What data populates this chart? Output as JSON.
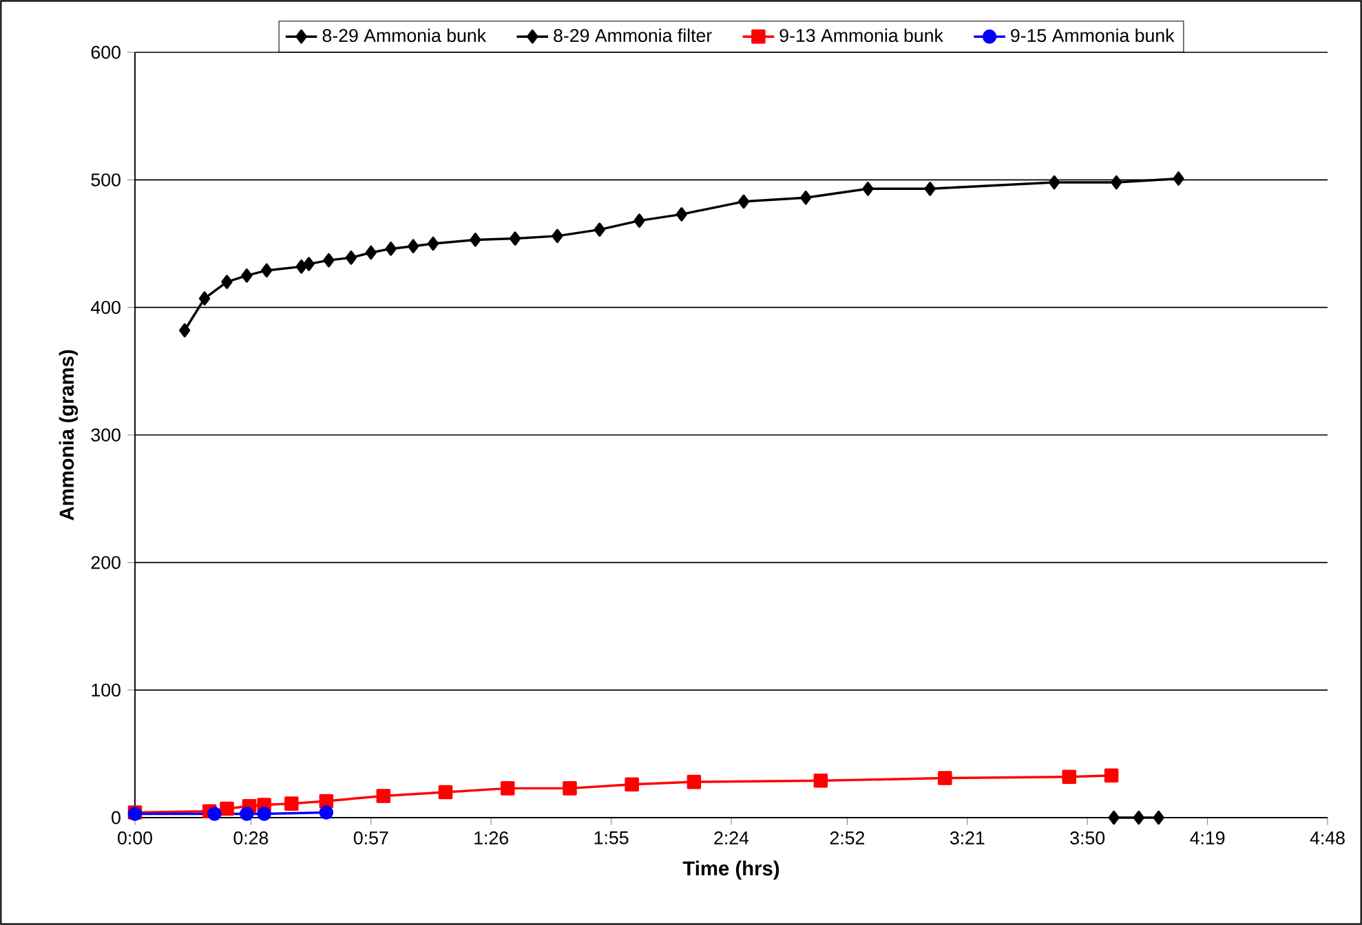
{
  "chart_data": {
    "type": "line",
    "xlabel": "Time (hrs)",
    "ylabel": "Ammonia (grams)",
    "xlim": [
      0,
      4.8
    ],
    "ylim": [
      0,
      600
    ],
    "xticks": [
      {
        "value": 0,
        "label": "0:00"
      },
      {
        "value": 0.4667,
        "label": "0:28"
      },
      {
        "value": 0.95,
        "label": "0:57"
      },
      {
        "value": 1.4333,
        "label": "1:26"
      },
      {
        "value": 1.9167,
        "label": "1:55"
      },
      {
        "value": 2.4,
        "label": "2:24"
      },
      {
        "value": 2.8667,
        "label": "2:52"
      },
      {
        "value": 3.35,
        "label": "3:21"
      },
      {
        "value": 3.8333,
        "label": "3:50"
      },
      {
        "value": 4.3167,
        "label": "4:19"
      },
      {
        "value": 4.8,
        "label": "4:48"
      }
    ],
    "yticks": [
      0,
      100,
      200,
      300,
      400,
      500,
      600
    ],
    "grid": "y",
    "legend": "top",
    "line_style": "solid",
    "series": [
      {
        "name": "8-29 Ammonia bunk",
        "color": "#000000",
        "marker": "diamond",
        "x": [
          0.2,
          0.28,
          0.37,
          0.45,
          0.53,
          0.67,
          0.7,
          0.78,
          0.87,
          0.95,
          1.03,
          1.12,
          1.2,
          1.37,
          1.53,
          1.7,
          1.87,
          2.03,
          2.2,
          2.45,
          2.7,
          2.95,
          3.2,
          3.7,
          3.95,
          4.2
        ],
        "values": [
          382,
          407,
          420,
          425,
          429,
          432,
          434,
          437,
          439,
          443,
          446,
          448,
          450,
          453,
          454,
          456,
          461,
          468,
          473,
          483,
          486,
          493,
          493,
          498,
          498,
          501
        ]
      },
      {
        "name": "8-29 Ammonia filter",
        "color": "#000000",
        "marker": "diamond",
        "x": [
          3.94,
          4.04,
          4.12
        ],
        "values": [
          0,
          0,
          0
        ]
      },
      {
        "name": "9-13 Ammonia bunk",
        "color": "#ff0000",
        "marker": "square",
        "x": [
          0,
          0.3,
          0.37,
          0.46,
          0.52,
          0.63,
          0.77,
          1.0,
          1.25,
          1.5,
          1.75,
          2.0,
          2.25,
          2.76,
          3.26,
          3.76,
          3.93
        ],
        "values": [
          4,
          5,
          7,
          9,
          10,
          11,
          13,
          17,
          20,
          23,
          23,
          26,
          28,
          29,
          31,
          32,
          33
        ]
      },
      {
        "name": "9-15 Ammonia bunk",
        "color": "#0000ff",
        "marker": "circle",
        "x": [
          0,
          0.32,
          0.45,
          0.52,
          0.77
        ],
        "values": [
          3,
          3,
          3,
          3,
          4
        ]
      }
    ]
  }
}
